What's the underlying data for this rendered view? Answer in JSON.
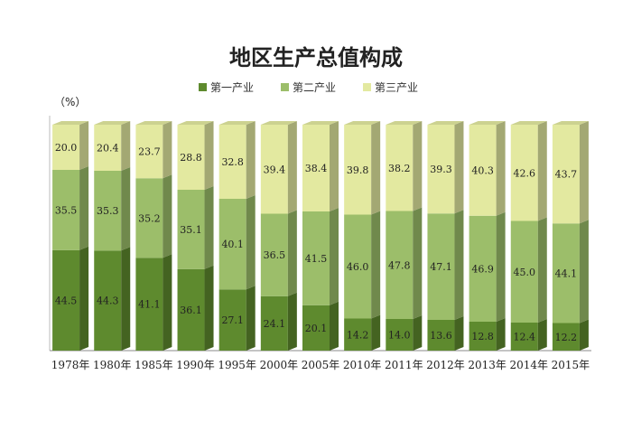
{
  "chart_data": {
    "type": "bar",
    "stacked": true,
    "title": "地区生产总值构成",
    "ylabel": "（%）",
    "ylim": [
      0,
      100
    ],
    "grid": false,
    "legend_position": "top",
    "categories": [
      "1978年",
      "1980年",
      "1985年",
      "1990年",
      "1995年",
      "2000年",
      "2005年",
      "2010年",
      "2011年",
      "2012年",
      "2013年",
      "2014年",
      "2015年"
    ],
    "series": [
      {
        "name": "第一产业",
        "color": "#5e8a2e",
        "values": [
          44.5,
          44.3,
          41.1,
          36.1,
          27.1,
          24.1,
          20.1,
          14.2,
          14.0,
          13.6,
          12.8,
          12.4,
          12.2
        ]
      },
      {
        "name": "第二产业",
        "color": "#9cbe6a",
        "values": [
          35.5,
          35.3,
          35.2,
          35.1,
          40.1,
          36.5,
          41.5,
          46.0,
          47.8,
          47.1,
          46.9,
          45.0,
          44.1
        ]
      },
      {
        "name": "第三产业",
        "color": "#e3e9a0",
        "values": [
          20.0,
          20.4,
          23.7,
          28.8,
          32.8,
          39.4,
          38.4,
          39.8,
          38.2,
          39.3,
          40.3,
          42.6,
          43.7
        ]
      }
    ]
  }
}
